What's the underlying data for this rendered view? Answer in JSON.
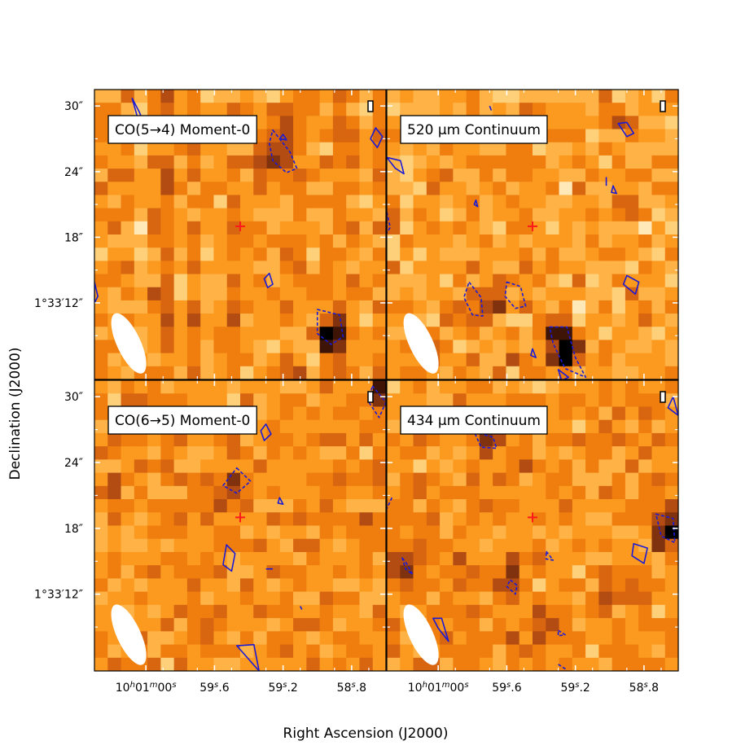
{
  "figure": {
    "xlabel": "Right Ascension (J2000)",
    "ylabel": "Declination (J2000)"
  },
  "colors": {
    "colormap": [
      "#ffe9b8",
      "#ffd07a",
      "#ffb347",
      "#fb9a1f",
      "#f07e0e",
      "#d86510",
      "#b34c12",
      "#80320e",
      "#3d1405",
      "#000000"
    ],
    "contour": "#1b1bd6",
    "marker": "#ff1a1a",
    "beam": "#ffffff"
  },
  "chart_data": [
    {
      "type": "heatmap",
      "title": "CO(5→4) Moment-0",
      "xlim": [
        600.3,
        598.6
      ],
      "ylim": [
        5.0,
        31.5
      ],
      "x_ticks": [
        {
          "value": 600.0,
          "label": "10h01m00s"
        },
        {
          "value": 599.6,
          "label": "59s.6"
        },
        {
          "value": 599.2,
          "label": "59s.2"
        },
        {
          "value": 598.8,
          "label": "58s.8"
        }
      ],
      "y_ticks": [
        {
          "value": 30,
          "label": "30″"
        },
        {
          "value": 24,
          "label": "24″"
        },
        {
          "value": 18,
          "label": "18″"
        },
        {
          "value": 12,
          "label": "1°33′12″"
        }
      ],
      "source_position": {
        "ra": 599.45,
        "dec": 19.0
      },
      "beam": {
        "ra": 600.1,
        "dec": 8.3,
        "major_arcsec": 4.8,
        "minor_arcsec": 1.8,
        "tilt_deg": 25
      },
      "pixel_grid": {
        "cols": 22,
        "rows": 22,
        "seed": 11,
        "streaks": true
      },
      "hot_spots": [
        {
          "ra": 598.92,
          "dec": 9.0,
          "peak": 9
        },
        {
          "ra": 599.2,
          "dec": 26.5,
          "peak": 7
        },
        {
          "ra": 599.3,
          "dec": 25.0,
          "peak": 6
        }
      ],
      "contours": [
        {
          "style": "solid",
          "points": [
            [
              600.08,
              30.7
            ],
            [
              600.04,
              29.5
            ],
            [
              600.01,
              28.4
            ],
            [
              600.05,
              29.0
            ]
          ]
        },
        {
          "style": "solid",
          "points": [
            [
              598.66,
              28.0
            ],
            [
              598.62,
              27.2
            ],
            [
              598.65,
              26.2
            ],
            [
              598.69,
              27.0
            ]
          ]
        },
        {
          "style": "solid",
          "points": [
            [
              599.2,
              27.4
            ],
            [
              599.18,
              26.9
            ],
            [
              599.22,
              27.0
            ]
          ]
        },
        {
          "style": "dashed",
          "points": [
            [
              599.26,
              27.8
            ],
            [
              599.16,
              25.8
            ],
            [
              599.12,
              24.3
            ],
            [
              599.18,
              23.9
            ],
            [
              599.26,
              25.0
            ],
            [
              599.28,
              26.6
            ]
          ]
        },
        {
          "style": "solid",
          "points": [
            [
              599.28,
              14.7
            ],
            [
              599.26,
              13.7
            ],
            [
              599.29,
              13.4
            ],
            [
              599.31,
              14.2
            ]
          ]
        },
        {
          "style": "dashed",
          "points": [
            [
              599.0,
              11.4
            ],
            [
              598.87,
              10.9
            ],
            [
              598.85,
              8.9
            ],
            [
              598.92,
              8.2
            ],
            [
              599.0,
              9.2
            ]
          ]
        },
        {
          "style": "solid",
          "points": [
            [
              600.3,
              13.9
            ],
            [
              600.28,
              12.6
            ],
            [
              600.3,
              12.0
            ]
          ]
        }
      ]
    },
    {
      "type": "heatmap",
      "title": "520 μm Continuum",
      "xlim": [
        600.3,
        598.6
      ],
      "ylim": [
        5.0,
        31.5
      ],
      "x_ticks": [
        {
          "value": 600.0,
          "label": "10h01m00s"
        },
        {
          "value": 599.6,
          "label": "59s.6"
        },
        {
          "value": 599.2,
          "label": "59s.2"
        },
        {
          "value": 598.8,
          "label": "58s.8"
        }
      ],
      "y_ticks": [
        {
          "value": 30,
          "label": "30″"
        },
        {
          "value": 24,
          "label": "24″"
        },
        {
          "value": 18,
          "label": "18″"
        },
        {
          "value": 12,
          "label": "1°33′12″"
        }
      ],
      "source_position": {
        "ra": 599.45,
        "dec": 19.0
      },
      "beam": {
        "ra": 600.1,
        "dec": 8.3,
        "major_arcsec": 4.8,
        "minor_arcsec": 1.8,
        "tilt_deg": 25
      },
      "pixel_grid": {
        "cols": 22,
        "rows": 22,
        "seed": 23,
        "streaks": false,
        "light_bias": 1.6
      },
      "hot_spots": [
        {
          "ra": 599.29,
          "dec": 8.5,
          "peak": 9
        },
        {
          "ra": 599.24,
          "dec": 7.0,
          "peak": 7
        },
        {
          "ra": 599.82,
          "dec": 11.5,
          "peak": 6
        },
        {
          "ra": 599.65,
          "dec": 12.5,
          "peak": 5
        }
      ],
      "contours": [
        {
          "style": "solid",
          "points": [
            [
              600.3,
              25.3
            ],
            [
              600.25,
              24.3
            ],
            [
              600.2,
              23.8
            ],
            [
              600.22,
              25.0
            ]
          ]
        },
        {
          "style": "solid",
          "points": [
            [
              599.7,
              30.0
            ],
            [
              599.69,
              29.6
            ]
          ]
        },
        {
          "style": "solid",
          "points": [
            [
              598.95,
              28.4
            ],
            [
              598.9,
              27.2
            ],
            [
              598.86,
              27.5
            ],
            [
              598.9,
              28.5
            ]
          ]
        },
        {
          "style": "solid",
          "points": [
            [
              599.02,
              23.5
            ],
            [
              599.02,
              22.7
            ]
          ]
        },
        {
          "style": "solid",
          "points": [
            [
              598.98,
              22.7
            ],
            [
              598.96,
              22.0
            ],
            [
              598.99,
              22.1
            ]
          ]
        },
        {
          "style": "solid",
          "points": [
            [
              599.78,
              21.4
            ],
            [
              599.77,
              20.8
            ],
            [
              599.79,
              21.0
            ]
          ]
        },
        {
          "style": "dashed",
          "points": [
            [
              600.3,
              20.3
            ],
            [
              600.28,
              18.9
            ],
            [
              600.3,
              18.4
            ]
          ]
        },
        {
          "style": "solid",
          "points": [
            [
              598.9,
              14.5
            ],
            [
              598.83,
              13.9
            ],
            [
              598.85,
              12.8
            ],
            [
              598.92,
              13.7
            ]
          ]
        },
        {
          "style": "dashed",
          "points": [
            [
              599.82,
              13.9
            ],
            [
              599.75,
              12.5
            ],
            [
              599.74,
              10.8
            ],
            [
              599.8,
              10.9
            ],
            [
              599.85,
              12.5
            ]
          ]
        },
        {
          "style": "dashed",
          "points": [
            [
              599.6,
              13.9
            ],
            [
              599.52,
              13.5
            ],
            [
              599.49,
              11.7
            ],
            [
              599.55,
              11.5
            ],
            [
              599.61,
              12.6
            ]
          ]
        },
        {
          "style": "dashed",
          "points": [
            [
              599.35,
              9.8
            ],
            [
              599.25,
              9.8
            ],
            [
              599.2,
              7.0
            ],
            [
              599.14,
              5.2
            ],
            [
              599.26,
              6.0
            ],
            [
              599.33,
              8.3
            ]
          ]
        },
        {
          "style": "solid",
          "points": [
            [
              599.45,
              7.8
            ],
            [
              599.43,
              7.0
            ],
            [
              599.46,
              7.2
            ]
          ]
        },
        {
          "style": "solid",
          "points": [
            [
              599.3,
              5.9
            ],
            [
              599.24,
              5.2
            ],
            [
              599.28,
              4.9
            ]
          ]
        }
      ]
    },
    {
      "type": "heatmap",
      "title": "CO(6→5) Moment-0",
      "xlim": [
        600.3,
        598.6
      ],
      "ylim": [
        5.0,
        31.5
      ],
      "x_ticks": [
        {
          "value": 600.0,
          "label": "10h01m00s"
        },
        {
          "value": 599.6,
          "label": "59s.6"
        },
        {
          "value": 599.2,
          "label": "59s.2"
        },
        {
          "value": 598.8,
          "label": "58s.8"
        }
      ],
      "y_ticks": [
        {
          "value": 30,
          "label": "30″"
        },
        {
          "value": 24,
          "label": "24″"
        },
        {
          "value": 18,
          "label": "18″"
        },
        {
          "value": 12,
          "label": "1°33′12″"
        }
      ],
      "source_position": {
        "ra": 599.45,
        "dec": 19.0
      },
      "beam": {
        "ra": 600.1,
        "dec": 8.3,
        "major_arcsec": 4.8,
        "minor_arcsec": 1.8,
        "tilt_deg": 25
      },
      "pixel_grid": {
        "cols": 22,
        "rows": 22,
        "seed": 37,
        "streaks": false
      },
      "hot_spots": [
        {
          "ra": 599.48,
          "dec": 22.0,
          "peak": 7
        },
        {
          "ra": 598.63,
          "dec": 30.5,
          "peak": 8
        }
      ],
      "contours": [
        {
          "style": "dashed",
          "points": [
            [
              599.47,
              23.5
            ],
            [
              599.39,
              22.3
            ],
            [
              599.47,
              21.2
            ],
            [
              599.55,
              21.9
            ]
          ]
        },
        {
          "style": "solid",
          "points": [
            [
              599.3,
              27.5
            ],
            [
              599.27,
              26.6
            ],
            [
              599.31,
              26.0
            ],
            [
              599.33,
              26.9
            ]
          ]
        },
        {
          "style": "solid",
          "points": [
            [
              599.22,
              20.8
            ],
            [
              599.2,
              20.2
            ],
            [
              599.23,
              20.3
            ]
          ]
        },
        {
          "style": "solid",
          "points": [
            [
              599.53,
              16.5
            ],
            [
              599.48,
              15.7
            ],
            [
              599.5,
              14.1
            ],
            [
              599.55,
              14.7
            ]
          ]
        },
        {
          "style": "solid",
          "points": [
            [
              599.3,
              14.3
            ],
            [
              599.26,
              14.3
            ]
          ]
        },
        {
          "style": "solid",
          "points": [
            [
              599.1,
              10.9
            ],
            [
              599.09,
              10.6
            ]
          ]
        },
        {
          "style": "solid",
          "points": [
            [
              599.47,
              7.3
            ],
            [
              599.37,
              7.4
            ],
            [
              599.34,
              5.0
            ]
          ]
        },
        {
          "style": "dashed",
          "points": [
            [
              598.68,
              31.0
            ],
            [
              598.6,
              29.5
            ],
            [
              598.64,
              28.1
            ],
            [
              598.7,
              29.5
            ]
          ]
        }
      ]
    },
    {
      "type": "heatmap",
      "title": "434 μm Continuum",
      "xlim": [
        600.3,
        598.6
      ],
      "ylim": [
        5.0,
        31.5
      ],
      "x_ticks": [
        {
          "value": 600.0,
          "label": "10h01m00s"
        },
        {
          "value": 599.6,
          "label": "59s.6"
        },
        {
          "value": 599.2,
          "label": "59s.2"
        },
        {
          "value": 598.8,
          "label": "58s.8"
        }
      ],
      "y_ticks": [
        {
          "value": 30,
          "label": "30″"
        },
        {
          "value": 24,
          "label": "24″"
        },
        {
          "value": 18,
          "label": "18″"
        },
        {
          "value": 12,
          "label": "1°33′12″"
        }
      ],
      "source_position": {
        "ra": 599.45,
        "dec": 19.0
      },
      "beam": {
        "ra": 600.1,
        "dec": 8.3,
        "major_arcsec": 4.8,
        "minor_arcsec": 1.8,
        "tilt_deg": 25
      },
      "pixel_grid": {
        "cols": 22,
        "rows": 22,
        "seed": 53,
        "streaks": false
      },
      "hot_spots": [
        {
          "ra": 599.72,
          "dec": 26.2,
          "peak": 7
        },
        {
          "ra": 598.66,
          "dec": 17.8,
          "peak": 9
        },
        {
          "ra": 599.58,
          "dec": 13.0,
          "peak": 6
        },
        {
          "ra": 600.2,
          "dec": 15.0,
          "peak": 6
        },
        {
          "ra": 599.4,
          "dec": 9.0,
          "peak": 6
        }
      ],
      "contours": [
        {
          "style": "dashed",
          "points": [
            [
              599.79,
              26.8
            ],
            [
              599.68,
              26.3
            ],
            [
              599.66,
              25.3
            ],
            [
              599.75,
              25.4
            ]
          ]
        },
        {
          "style": "dashed",
          "points": [
            [
              598.73,
              19.3
            ],
            [
              598.63,
              18.9
            ],
            [
              598.62,
              16.7
            ],
            [
              598.7,
              17.3
            ]
          ]
        },
        {
          "style": "solid",
          "points": [
            [
              598.86,
              16.6
            ],
            [
              598.78,
              16.2
            ],
            [
              598.8,
              14.8
            ],
            [
              598.87,
              15.5
            ]
          ]
        },
        {
          "style": "solid",
          "points": [
            [
              598.63,
              30.0
            ],
            [
              598.6,
              28.3
            ],
            [
              598.66,
              29.0
            ]
          ]
        },
        {
          "style": "dashed",
          "points": [
            [
              600.27,
              20.8
            ],
            [
              600.3,
              19.8
            ]
          ]
        },
        {
          "style": "dashed",
          "points": [
            [
              600.21,
              15.3
            ],
            [
              600.18,
              14.7
            ],
            [
              600.15,
              13.8
            ],
            [
              600.19,
              14.3
            ]
          ]
        },
        {
          "style": "dashed",
          "points": [
            [
              599.58,
              13.3
            ],
            [
              599.54,
              12.8
            ],
            [
              599.55,
              12.0
            ],
            [
              599.6,
              12.7
            ]
          ]
        },
        {
          "style": "dashed",
          "points": [
            [
              599.37,
              15.9
            ],
            [
              599.33,
              15.1
            ],
            [
              599.37,
              15.2
            ]
          ]
        },
        {
          "style": "solid",
          "points": [
            [
              600.03,
              9.8
            ],
            [
              599.98,
              9.8
            ],
            [
              599.94,
              7.7
            ],
            [
              600.0,
              8.9
            ]
          ]
        },
        {
          "style": "dashed",
          "points": [
            [
              599.3,
              8.7
            ],
            [
              599.26,
              8.3
            ],
            [
              599.3,
              8.2
            ]
          ]
        },
        {
          "style": "dashed",
          "points": [
            [
              599.3,
              5.6
            ],
            [
              599.25,
              5.1
            ]
          ]
        }
      ]
    }
  ]
}
